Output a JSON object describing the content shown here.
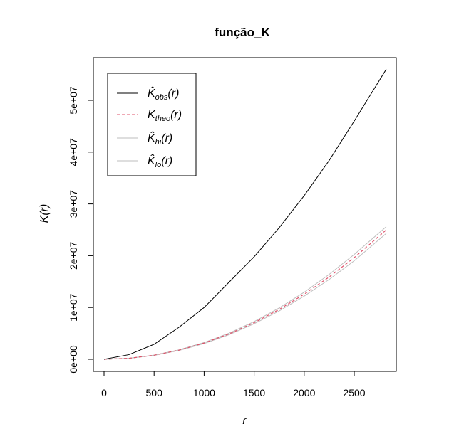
{
  "chart_data": {
    "type": "line",
    "title": "função_K",
    "xlabel": "r",
    "ylabel": "K(r)",
    "xlim": [
      0,
      2820
    ],
    "ylim": [
      0,
      56000000
    ],
    "x_ticks": [
      0,
      500,
      1000,
      1500,
      2000,
      2500
    ],
    "x_tick_labels": [
      "0",
      "500",
      "1000",
      "1500",
      "2000",
      "2500"
    ],
    "y_ticks": [
      0,
      10000000,
      20000000,
      30000000,
      40000000,
      50000000
    ],
    "y_tick_labels": [
      "0e+00",
      "1e+07",
      "2e+07",
      "3e+07",
      "4e+07",
      "5e+07"
    ],
    "grid": false,
    "legend_position": "top-left",
    "series": [
      {
        "name": "K̂obs(r)",
        "legend_base": "K̂",
        "legend_sub": "obs",
        "legend_suffix": "(r)",
        "color": "#000000",
        "dash": "solid",
        "x": [
          0,
          250,
          500,
          750,
          1000,
          1250,
          1500,
          1750,
          2000,
          2250,
          2500,
          2820
        ],
        "y": [
          0,
          900000,
          2900000,
          6200000,
          10000000,
          14900000,
          19800000,
          25400000,
          31600000,
          38400000,
          46000000,
          56000000
        ]
      },
      {
        "name": "Ktheo(r)",
        "legend_base": "K",
        "legend_sub": "theo",
        "legend_suffix": "(r)",
        "color": "#df536b",
        "dash": "dashed",
        "x": [
          0,
          250,
          500,
          750,
          1000,
          1250,
          1500,
          1750,
          2000,
          2250,
          2500,
          2820
        ],
        "y": [
          0,
          196000,
          785000,
          1770000,
          3140000,
          4910000,
          7070000,
          9620000,
          12570000,
          15900000,
          19630000,
          24980000
        ]
      },
      {
        "name": "K̂hi(r)",
        "legend_base": "K̂",
        "legend_sub": "hi",
        "legend_suffix": "(r)",
        "color": "#bebebe",
        "dash": "solid",
        "x": [
          0,
          250,
          500,
          750,
          1000,
          1250,
          1500,
          1750,
          2000,
          2250,
          2500,
          2820
        ],
        "y": [
          0,
          205000,
          810000,
          1830000,
          3240000,
          5060000,
          7280000,
          9910000,
          12950000,
          16400000,
          20250000,
          25600000
        ]
      },
      {
        "name": "K̂lo(r)",
        "legend_base": "K̂",
        "legend_sub": "lo",
        "legend_suffix": "(r)",
        "color": "#bebebe",
        "dash": "solid",
        "x": [
          0,
          250,
          500,
          750,
          1000,
          1250,
          1500,
          1750,
          2000,
          2250,
          2500,
          2820
        ],
        "y": [
          0,
          188000,
          760000,
          1710000,
          3040000,
          4760000,
          6860000,
          9330000,
          12200000,
          15420000,
          19020000,
          24300000
        ]
      }
    ]
  }
}
